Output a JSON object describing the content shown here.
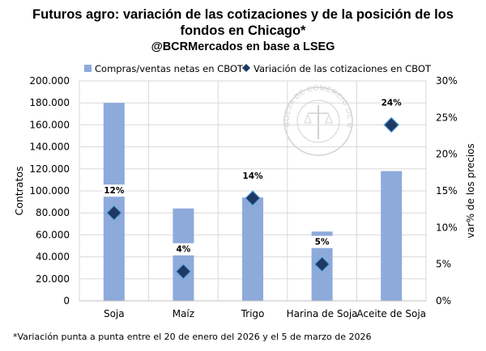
{
  "title_line1": "Futuros agro: variación de las cotizaciones y de la posición de los",
  "title_line2": "fondos en Chicago*",
  "subtitle": "@BCRMercados en base a LSEG",
  "footnote": "*Variación punta a punta entre el 20 de enero del 2026 y el 5 de marzo de 2026",
  "watermark": "BOLSA DE COMERCIO DE ROSARIO",
  "chart_data": {
    "type": "bar",
    "categories": [
      "Soja",
      "Maíz",
      "Trigo",
      "Harina de Soja",
      "Aceite de Soja"
    ],
    "ylabel": "Contratos",
    "y2label": "var% de los precios",
    "ylim": [
      0,
      200000
    ],
    "y2lim": [
      0,
      30
    ],
    "yticks": [
      "0",
      "20.000",
      "40.000",
      "60.000",
      "80.000",
      "100.000",
      "120.000",
      "140.000",
      "160.000",
      "180.000",
      "200.000"
    ],
    "y2ticks": [
      "0%",
      "5%",
      "10%",
      "15%",
      "20%",
      "25%",
      "30%"
    ],
    "legend_position": "top",
    "grid": true,
    "series": [
      {
        "name": "Compras/ventas netas en CBOT",
        "kind": "bar",
        "axis": "left",
        "color": "#8eaadb",
        "values": [
          180000,
          84000,
          94000,
          63000,
          118000
        ]
      },
      {
        "name": "Variación de las cotizaciones en CBOT",
        "kind": "marker",
        "axis": "right",
        "color": "#1f3864",
        "values": [
          12,
          4,
          14,
          5,
          24
        ],
        "labels": [
          "12%",
          "4%",
          "14%",
          "5%",
          "24%"
        ]
      }
    ]
  }
}
